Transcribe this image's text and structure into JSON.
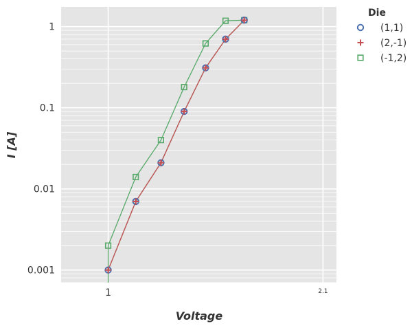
{
  "chart_data": {
    "type": "line",
    "xlabel": "Voltage",
    "ylabel": "I [A]",
    "y_scale": "log",
    "x_scale": "log",
    "xlim": [
      0.85,
      2.2
    ],
    "ylim": [
      0.0007,
      1.75
    ],
    "x_ticks": [
      {
        "value": 1,
        "label": "1",
        "small": false
      },
      {
        "value": 2.1,
        "label": "2.1",
        "small": true
      }
    ],
    "y_ticks": [
      {
        "value": 1,
        "label": "1"
      },
      {
        "value": 0.1,
        "label": "0.1"
      },
      {
        "value": 0.01,
        "label": "0.01"
      },
      {
        "value": 0.001,
        "label": "0.001"
      }
    ],
    "grid": true,
    "legend": {
      "title": "Die",
      "position": "outside-right"
    },
    "series": [
      {
        "name": "(1,1)",
        "marker": "circle",
        "color": "#4C72B0",
        "line_color": "#55A868",
        "x": [
          1.0,
          1.1,
          1.2,
          1.3,
          1.4,
          1.5,
          1.6
        ],
        "y": [
          0.001,
          0.007,
          0.021,
          0.09,
          0.31,
          0.7,
          1.2
        ]
      },
      {
        "name": "(2,-1)",
        "marker": "plus",
        "color": "#C44E52",
        "line_color": "#C44E52",
        "x": [
          1.0,
          1.1,
          1.2,
          1.3,
          1.4,
          1.5,
          1.6
        ],
        "y": [
          0.001,
          0.007,
          0.021,
          0.09,
          0.31,
          0.7,
          1.2
        ]
      },
      {
        "name": "(-1,2)",
        "marker": "square",
        "color": "#55A868",
        "line_color": "#55A868",
        "x": [
          1.0,
          1.1,
          1.2,
          1.3,
          1.4,
          1.5,
          1.6
        ],
        "y": [
          0.002,
          0.014,
          0.04,
          0.18,
          0.62,
          1.18,
          1.2
        ]
      }
    ],
    "colors": {
      "background": "#E5E5E5",
      "grid": "#FFFFFF",
      "accent_green": "#55A868",
      "accent_red": "#C44E52",
      "accent_blue": "#4C72B0"
    }
  }
}
